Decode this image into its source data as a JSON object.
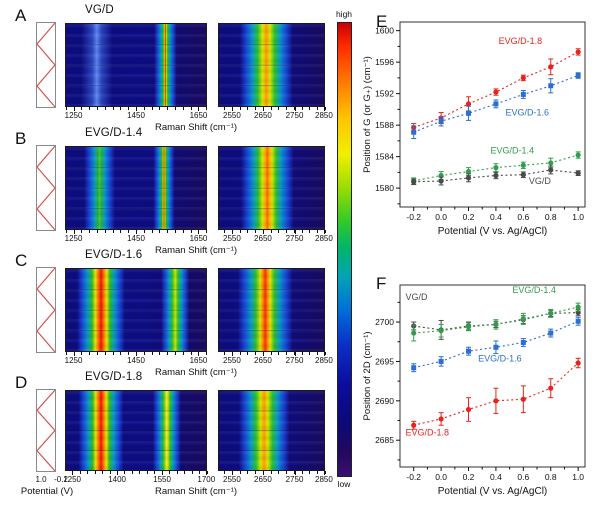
{
  "colorbar": {
    "high_label": "high",
    "low_label": "low"
  },
  "rows": [
    {
      "letter": "A",
      "title": "VG/D",
      "xlabel": "Raman Shift (cm⁻¹)",
      "left_ticks": {
        "labels": [
          "1250",
          "1450",
          "1650"
        ],
        "fracs": [
          0.06,
          0.5,
          0.94
        ],
        "minor_start": 0.005,
        "minor_step": 0.055
      },
      "right_ticks": {
        "labels": [
          "2550",
          "2650",
          "2750",
          "2850"
        ],
        "fracs": [
          0.13,
          0.42,
          0.715,
          0.99
        ],
        "minor_start": 0.0575,
        "minor_step": 0.0725
      },
      "left_bands": [
        {
          "center": 0.22,
          "width": 0.22,
          "type": "faint-blue"
        },
        {
          "center": 0.71,
          "width": 0.16,
          "type": "red-sharp"
        }
      ],
      "right_bands": [
        {
          "center": 0.45,
          "width": 0.5,
          "type": "2d-orange"
        }
      ]
    },
    {
      "letter": "B",
      "title": "EVG/D-1.4",
      "xlabel": "Raman Shift (cm⁻¹)",
      "left_ticks": {
        "labels": [
          "1250",
          "1450",
          "1650"
        ],
        "fracs": [
          0.06,
          0.5,
          0.94
        ],
        "minor_start": 0.005,
        "minor_step": 0.055
      },
      "right_ticks": {
        "labels": [
          "2550",
          "2650",
          "2750",
          "2850"
        ],
        "fracs": [
          0.13,
          0.42,
          0.715,
          0.99
        ],
        "minor_start": 0.0575,
        "minor_step": 0.0725
      },
      "left_bands": [
        {
          "center": 0.24,
          "width": 0.22,
          "type": "green"
        },
        {
          "center": 0.7,
          "width": 0.15,
          "type": "red-sharp"
        }
      ],
      "right_bands": [
        {
          "center": 0.46,
          "width": 0.5,
          "type": "2d-orangered"
        }
      ]
    },
    {
      "letter": "C",
      "title": "EVG/D-1.6",
      "xlabel": "Raman Shift (cm⁻¹)",
      "left_ticks": {
        "labels": [
          "1250",
          "1450",
          "1650"
        ],
        "fracs": [
          0.06,
          0.5,
          0.94
        ],
        "minor_start": 0.005,
        "minor_step": 0.055
      },
      "right_ticks": {
        "labels": [
          "2550",
          "2650",
          "2750",
          "2850"
        ],
        "fracs": [
          0.13,
          0.42,
          0.715,
          0.99
        ],
        "minor_start": 0.0575,
        "minor_step": 0.0725
      },
      "left_bands": [
        {
          "center": 0.25,
          "width": 0.34,
          "type": "red-broad"
        },
        {
          "center": 0.78,
          "width": 0.2,
          "type": "yellowgreen"
        }
      ],
      "right_bands": [
        {
          "center": 0.44,
          "width": 0.52,
          "type": "2d-red"
        }
      ]
    },
    {
      "letter": "D",
      "title": "EVG/D-1.8",
      "xlabel": "Raman Shift (cm⁻¹)",
      "left_ticks": {
        "labels": [
          "1250",
          "1400",
          "1550",
          "1700"
        ],
        "fracs": [
          0.05,
          0.3667,
          0.6833,
          0.995
        ],
        "minor_start": 0.05,
        "minor_step": 0.0527
      },
      "right_ticks": {
        "labels": [
          "2550",
          "2650",
          "2750",
          "2850"
        ],
        "fracs": [
          0.13,
          0.42,
          0.715,
          0.99
        ],
        "minor_start": 0.0575,
        "minor_step": 0.0725
      },
      "left_bands": [
        {
          "center": 0.25,
          "width": 0.32,
          "type": "red-broad"
        },
        {
          "center": 0.72,
          "width": 0.2,
          "type": "yellow"
        }
      ],
      "right_bands": [
        {
          "center": 0.43,
          "width": 0.48,
          "type": "2d-orange"
        }
      ],
      "potential_ticks": [
        "1.0",
        "-0.2"
      ],
      "potential_label": "Potential (V)"
    }
  ],
  "chart_data": [
    {
      "letter": "E",
      "type": "scatter",
      "xlabel": "Potential (V vs. Ag/AgCl)",
      "ylabel": "Position of G (or G₊) (cm⁻¹)",
      "x": [
        -0.2,
        0.0,
        0.2,
        0.4,
        0.6,
        0.8,
        1.0
      ],
      "xticks": [
        -0.2,
        0.0,
        0.2,
        0.4,
        0.6,
        0.8,
        1.0
      ],
      "xtick_labels": [
        "-0.2",
        "0.0",
        "0.2",
        "0.4",
        "0.6",
        "0.8",
        "1.0"
      ],
      "xlim": [
        -0.3,
        1.05
      ],
      "ylim": [
        1577.6,
        1601.1
      ],
      "yticks": [
        1580,
        1584,
        1588,
        1592,
        1596,
        1600
      ],
      "ytick_minor_step": 2,
      "xtick_minor_step": 0.1,
      "grid": false,
      "series": [
        {
          "name": "EVG/D-1.8",
          "color": "#e8231e",
          "marker": "circle",
          "values": [
            1587.7,
            1588.9,
            1590.7,
            1592.2,
            1594.0,
            1595.4,
            1597.3
          ],
          "errors": [
            0.5,
            0.7,
            0.9,
            0.4,
            0.35,
            1.0,
            0.4
          ],
          "label_at": [
            0.42,
            1598.3
          ]
        },
        {
          "name": "EVG/D-1.6",
          "color": "#2b6fd0",
          "marker": "square",
          "values": [
            1587.1,
            1588.5,
            1589.5,
            1590.7,
            1591.9,
            1593.0,
            1594.3
          ],
          "errors": [
            0.8,
            0.6,
            0.9,
            0.5,
            0.5,
            0.9,
            0.35
          ],
          "label_at": [
            0.47,
            1589.2
          ]
        },
        {
          "name": "EVG/D-1.4",
          "color": "#2f9e4a",
          "marker": "circle",
          "values": [
            1580.9,
            1581.6,
            1582.1,
            1582.6,
            1582.9,
            1583.2,
            1584.2
          ],
          "errors": [
            0.4,
            0.5,
            0.5,
            0.5,
            0.4,
            0.6,
            0.4
          ],
          "label_at": [
            0.36,
            1584.4
          ]
        },
        {
          "name": "VG/D",
          "color": "#4a4a4a",
          "marker": "circle",
          "values": [
            1580.8,
            1580.9,
            1581.3,
            1581.6,
            1581.7,
            1582.3,
            1581.9
          ],
          "errors": [
            0.35,
            0.5,
            0.5,
            0.4,
            0.35,
            0.5,
            0.3
          ],
          "label_at": [
            0.64,
            1580.5
          ]
        }
      ]
    },
    {
      "letter": "F",
      "type": "scatter",
      "xlabel": "Potential (V vs. Ag/AgCl)",
      "ylabel": "Position of 2D (cm⁻¹)",
      "x": [
        -0.2,
        0.0,
        0.2,
        0.4,
        0.6,
        0.8,
        1.0
      ],
      "xticks": [
        -0.2,
        0.0,
        0.2,
        0.4,
        0.6,
        0.8,
        1.0
      ],
      "xtick_labels": [
        "-0.2",
        "0.0",
        "0.2",
        "0.4",
        "0.6",
        "0.8",
        "1.0"
      ],
      "xlim": [
        -0.3,
        1.05
      ],
      "ylim": [
        2681.6,
        2704.7
      ],
      "yticks": [
        2685,
        2690,
        2695,
        2700
      ],
      "ytick_minor_step": 2.5,
      "xtick_minor_step": 0.1,
      "grid": false,
      "series": [
        {
          "name": "VG/D",
          "color": "#4a4a4a",
          "marker": "circle",
          "values": [
            2699.5,
            2699.0,
            2699.5,
            2699.7,
            2700.3,
            2701.1,
            2701.2
          ],
          "errors": [
            0.5,
            1.2,
            0.5,
            0.4,
            0.5,
            0.4,
            0.4
          ],
          "label_at": [
            -0.26,
            2702.8
          ]
        },
        {
          "name": "EVG/D-1.4",
          "color": "#2f9e4a",
          "marker": "circle",
          "values": [
            2698.6,
            2698.9,
            2699.4,
            2699.7,
            2700.4,
            2701.1,
            2701.9
          ],
          "errors": [
            1.0,
            0.8,
            0.5,
            0.6,
            0.7,
            0.5,
            0.5
          ],
          "label_at": [
            0.52,
            2703.7
          ]
        },
        {
          "name": "EVG/D-1.6",
          "color": "#2b6fd0",
          "marker": "square",
          "values": [
            2694.2,
            2695.0,
            2696.3,
            2696.8,
            2697.4,
            2698.6,
            2700.1
          ],
          "errors": [
            0.5,
            0.6,
            0.5,
            0.8,
            0.5,
            0.5,
            0.5
          ],
          "label_at": [
            0.27,
            2695.0
          ]
        },
        {
          "name": "EVG/D-1.8",
          "color": "#e8231e",
          "marker": "circle",
          "values": [
            2686.9,
            2687.7,
            2688.9,
            2690.0,
            2690.2,
            2691.6,
            2694.8
          ],
          "errors": [
            0.5,
            0.8,
            1.5,
            1.6,
            1.7,
            1.2,
            0.6
          ],
          "label_at": [
            -0.26,
            2685.6
          ]
        }
      ]
    }
  ]
}
